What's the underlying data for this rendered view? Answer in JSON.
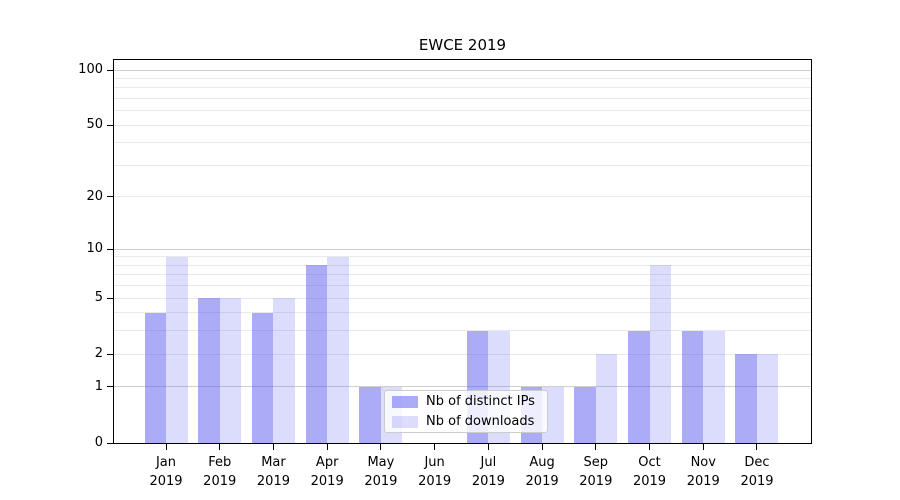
{
  "title": "EWCE 2019",
  "chart_data": {
    "type": "bar",
    "title": "EWCE 2019",
    "categories": [
      "Jan 2019",
      "Feb 2019",
      "Mar 2019",
      "Apr 2019",
      "May 2019",
      "Jun 2019",
      "Jul 2019",
      "Aug 2019",
      "Sep 2019",
      "Oct 2019",
      "Nov 2019",
      "Dec 2019"
    ],
    "series": [
      {
        "name": "Nb of distinct IPs",
        "color": "rgba(88,88,242,0.50)",
        "values": [
          4,
          5,
          4,
          8,
          1,
          0,
          3,
          1,
          1,
          3,
          3,
          2
        ]
      },
      {
        "name": "Nb of downloads",
        "color": "rgba(88,88,242,0.21)",
        "values": [
          9,
          5,
          5,
          9,
          1,
          0,
          3,
          1,
          2,
          8,
          3,
          2
        ]
      }
    ],
    "yscale": "log1p",
    "ylim": [
      0,
      100
    ],
    "y_ticks": [
      0,
      1,
      2,
      5,
      10,
      20,
      50,
      100
    ],
    "y_major_grid_ticks": [
      1,
      10,
      100
    ],
    "y_minor_grid_ticks": [
      2,
      3,
      4,
      5,
      6,
      7,
      8,
      9,
      20,
      30,
      40,
      50,
      60,
      70,
      80,
      90
    ],
    "xlabel": "",
    "ylabel": "",
    "grid": "horizontal",
    "legend_position": "lower-center-right",
    "bar_color_note": "translucent periwinkle bars over white; gridlines visible through bars"
  },
  "legend": {
    "items": [
      {
        "label": "Nb of distinct IPs"
      },
      {
        "label": "Nb of downloads"
      }
    ]
  }
}
